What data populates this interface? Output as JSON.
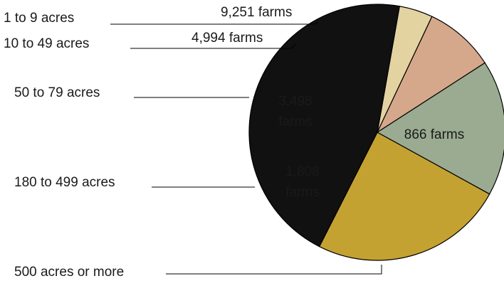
{
  "chart_data": {
    "type": "pie",
    "title": "",
    "slices": [
      {
        "category": "500 acres or more",
        "value": 866,
        "value_label": "866 farms",
        "color": "#e3d3a1"
      },
      {
        "category": "180 to 499 acres",
        "value": 1808,
        "value_label": "1,808 farms",
        "color": "#d5a88b"
      },
      {
        "category": "50 to 79 acres",
        "value": 3498,
        "value_label": "3,498 farms",
        "color": "#9aab91"
      },
      {
        "category": "10 to 49 acres",
        "value": 4994,
        "value_label": "4,994 farms",
        "color": "#c4a232"
      },
      {
        "category": "1 to 9 acres",
        "value": 9251,
        "value_label": "9,251 farms",
        "color": "#111111"
      }
    ],
    "legend": "leader-lines"
  }
}
